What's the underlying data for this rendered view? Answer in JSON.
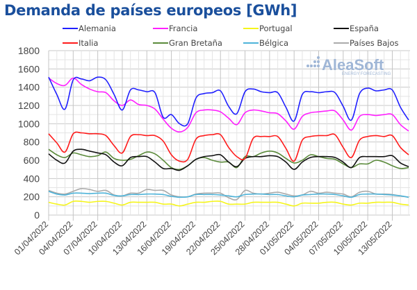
{
  "chart_data": {
    "type": "line",
    "title": "Demanda de países europeos [GWh]",
    "xlabel": "",
    "ylabel": "",
    "ylim": [
      0,
      1800
    ],
    "yticks": [
      0,
      200,
      400,
      600,
      800,
      1000,
      1200,
      1400,
      1600,
      1800
    ],
    "grid": true,
    "legend_position": "top",
    "x": [
      "01/04/2022",
      "02/04/2022",
      "03/04/2022",
      "04/04/2022",
      "05/04/2022",
      "06/04/2022",
      "07/04/2022",
      "08/04/2022",
      "09/04/2022",
      "10/04/2022",
      "11/04/2022",
      "12/04/2022",
      "13/04/2022",
      "14/04/2022",
      "15/04/2022",
      "16/04/2022",
      "17/04/2022",
      "18/04/2022",
      "19/04/2022",
      "20/04/2022",
      "21/04/2022",
      "22/04/2022",
      "23/04/2022",
      "24/04/2022",
      "25/04/2022",
      "26/04/2022",
      "27/04/2022",
      "28/04/2022",
      "29/04/2022",
      "30/04/2022",
      "01/05/2022",
      "02/05/2022",
      "03/05/2022",
      "04/05/2022",
      "05/05/2022",
      "06/05/2022",
      "07/05/2022",
      "08/05/2022",
      "09/05/2022",
      "10/05/2022",
      "11/05/2022",
      "12/05/2022",
      "13/05/2022",
      "14/05/2022",
      "15/05/2022"
    ],
    "xtick_labels": [
      "01/04/2022",
      "04/04/2022",
      "07/04/2022",
      "10/04/2022",
      "13/04/2022",
      "16/04/2022",
      "19/04/2022",
      "22/04/2022",
      "25/04/2022",
      "28/04/2022",
      "01/05/2022",
      "04/05/2022",
      "07/05/2022",
      "10/05/2022",
      "13/05/2022"
    ],
    "series": [
      {
        "name": "Alemania",
        "color": "#1f1fff",
        "values": [
          1510,
          1320,
          1160,
          1480,
          1490,
          1470,
          1510,
          1480,
          1320,
          1150,
          1370,
          1370,
          1350,
          1340,
          1070,
          1100,
          1000,
          1000,
          1280,
          1330,
          1340,
          1360,
          1190,
          1110,
          1350,
          1380,
          1350,
          1340,
          1340,
          1180,
          1030,
          1320,
          1350,
          1340,
          1350,
          1340,
          1190,
          1040,
          1330,
          1390,
          1360,
          1370,
          1370,
          1180,
          1040
        ]
      },
      {
        "name": "Francia",
        "color": "#ff1fff",
        "values": [
          1500,
          1440,
          1420,
          1500,
          1430,
          1380,
          1350,
          1340,
          1250,
          1200,
          1260,
          1210,
          1200,
          1160,
          1050,
          950,
          910,
          960,
          1120,
          1150,
          1150,
          1130,
          1060,
          990,
          1120,
          1150,
          1140,
          1120,
          1110,
          1030,
          940,
          1080,
          1120,
          1130,
          1140,
          1140,
          1040,
          930,
          1080,
          1100,
          1090,
          1100,
          1100,
          990,
          920
        ]
      },
      {
        "name": "Portugal",
        "color": "#f5f51a",
        "values": [
          140,
          120,
          110,
          150,
          150,
          140,
          150,
          150,
          130,
          110,
          140,
          140,
          140,
          140,
          120,
          120,
          100,
          120,
          140,
          140,
          150,
          150,
          120,
          120,
          120,
          140,
          140,
          140,
          140,
          120,
          100,
          130,
          130,
          130,
          140,
          140,
          120,
          110,
          130,
          130,
          140,
          140,
          140,
          120,
          110
        ]
      },
      {
        "name": "España",
        "color": "#111111",
        "values": [
          670,
          600,
          570,
          700,
          720,
          700,
          680,
          660,
          580,
          540,
          630,
          640,
          640,
          580,
          510,
          510,
          490,
          540,
          610,
          640,
          650,
          660,
          580,
          530,
          620,
          640,
          640,
          650,
          640,
          580,
          500,
          580,
          630,
          640,
          640,
          630,
          580,
          520,
          630,
          640,
          640,
          640,
          650,
          570,
          530
        ]
      },
      {
        "name": "Italia",
        "color": "#ff1a1a",
        "values": [
          890,
          790,
          690,
          890,
          900,
          890,
          890,
          870,
          760,
          680,
          860,
          880,
          870,
          870,
          810,
          660,
          590,
          610,
          830,
          870,
          880,
          880,
          740,
          640,
          620,
          840,
          860,
          860,
          860,
          730,
          590,
          820,
          860,
          870,
          870,
          880,
          740,
          630,
          820,
          860,
          870,
          860,
          870,
          740,
          660
        ]
      },
      {
        "name": "Gran Bretaña",
        "color": "#5a8a3a",
        "values": [
          720,
          660,
          630,
          680,
          660,
          640,
          650,
          690,
          620,
          600,
          610,
          650,
          690,
          670,
          600,
          520,
          500,
          540,
          610,
          630,
          600,
          580,
          580,
          520,
          640,
          640,
          680,
          700,
          680,
          620,
          570,
          600,
          660,
          640,
          620,
          610,
          560,
          520,
          560,
          560,
          600,
          580,
          540,
          510,
          520
        ]
      },
      {
        "name": "Bélgica",
        "color": "#4db3d9",
        "values": [
          260,
          230,
          220,
          240,
          240,
          235,
          240,
          240,
          215,
          210,
          225,
          225,
          230,
          230,
          225,
          205,
          195,
          200,
          225,
          225,
          225,
          220,
          210,
          200,
          225,
          230,
          230,
          225,
          225,
          210,
          200,
          220,
          225,
          230,
          230,
          225,
          210,
          195,
          225,
          230,
          230,
          225,
          220,
          210,
          195
        ]
      },
      {
        "name": "Países Bajos",
        "color": "#aaaaaa",
        "values": [
          270,
          240,
          230,
          260,
          290,
          280,
          260,
          270,
          220,
          210,
          240,
          240,
          280,
          270,
          270,
          220,
          200,
          200,
          230,
          240,
          240,
          240,
          190,
          170,
          270,
          240,
          230,
          240,
          250,
          230,
          210,
          220,
          260,
          240,
          250,
          240,
          230,
          200,
          250,
          260,
          230,
          230,
          225,
          210,
          195
        ]
      }
    ],
    "watermark": {
      "brand": "AleaSoft",
      "tagline": "ENERGY FORECASTING"
    }
  }
}
